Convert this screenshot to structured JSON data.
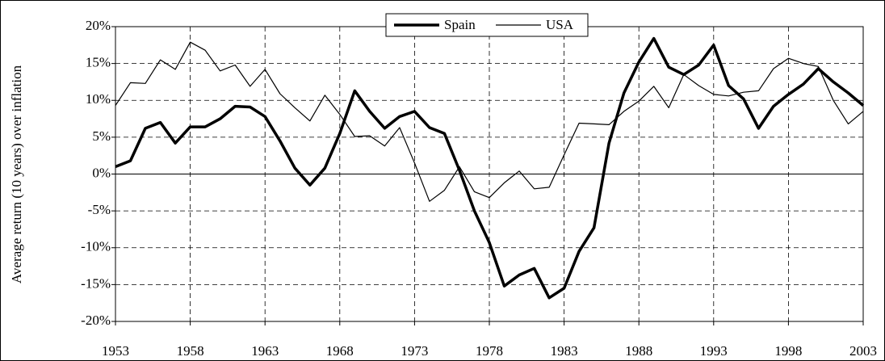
{
  "chart_data": {
    "type": "line",
    "y_label": "Average return (10 years) over inflation",
    "x": [
      1953,
      1954,
      1955,
      1956,
      1957,
      1958,
      1959,
      1960,
      1961,
      1962,
      1963,
      1964,
      1965,
      1966,
      1967,
      1968,
      1969,
      1970,
      1971,
      1972,
      1973,
      1974,
      1975,
      1976,
      1977,
      1978,
      1979,
      1980,
      1981,
      1982,
      1983,
      1984,
      1985,
      1986,
      1987,
      1988,
      1989,
      1990,
      1991,
      1992,
      1993,
      1994,
      1995,
      1996,
      1997,
      1998,
      1999,
      2000,
      2001,
      2002,
      2003
    ],
    "series": [
      {
        "name": "Spain",
        "color": "#000000",
        "width": 3.5,
        "values": [
          1,
          1.8,
          6.2,
          7,
          4.2,
          6.4,
          6.4,
          7.5,
          9.2,
          9.1,
          7.8,
          4.5,
          0.8,
          -1.5,
          0.8,
          5.5,
          11.3,
          8.5,
          6.2,
          7.8,
          8.5,
          6.3,
          5.5,
          0.5,
          -5,
          -9.3,
          -15.2,
          -13.7,
          -12.8,
          -16.8,
          -15.5,
          -10.5,
          -7.3,
          4.2,
          11,
          15.2,
          18.4,
          14.5,
          13.5,
          14.8,
          17.5,
          12,
          10.2,
          6.2,
          9.2,
          10.8,
          12.2,
          14.3,
          12.5,
          11,
          9.3
        ]
      },
      {
        "name": "USA",
        "color": "#000000",
        "width": 1.2,
        "values": [
          9.3,
          12.4,
          12.3,
          15.5,
          14.2,
          17.9,
          16.8,
          14,
          14.8,
          11.9,
          14.2,
          10.9,
          9,
          7.2,
          10.7,
          8.1,
          5.1,
          5.2,
          3.8,
          6.3,
          1.5,
          -3.7,
          -2.2,
          1,
          -2.4,
          -3.2,
          -1.2,
          0.4,
          -2,
          -1.8,
          2.6,
          6.9,
          6.8,
          6.7,
          8.5,
          9.9,
          11.9,
          9,
          13.5,
          12,
          10.8,
          10.6,
          11.1,
          11.3,
          14.3,
          15.7,
          15,
          14.6,
          10,
          6.8,
          8.5
        ]
      }
    ],
    "xlim": [
      1953,
      2003
    ],
    "xticks": [
      1953,
      1958,
      1963,
      1968,
      1973,
      1978,
      1983,
      1988,
      1993,
      1998,
      2003
    ],
    "ylim": [
      -20,
      20
    ],
    "yticks": [
      {
        "value": -20,
        "label": "-20%"
      },
      {
        "value": -15,
        "label": "-15%"
      },
      {
        "value": -10,
        "label": "-10%"
      },
      {
        "value": -5,
        "label": "-5%"
      },
      {
        "value": 0,
        "label": "0%"
      },
      {
        "value": 5,
        "label": "5%"
      },
      {
        "value": 10,
        "label": "10%"
      },
      {
        "value": 15,
        "label": "15%"
      },
      {
        "value": 20,
        "label": "20%"
      }
    ],
    "grid": true,
    "legend": "top"
  }
}
